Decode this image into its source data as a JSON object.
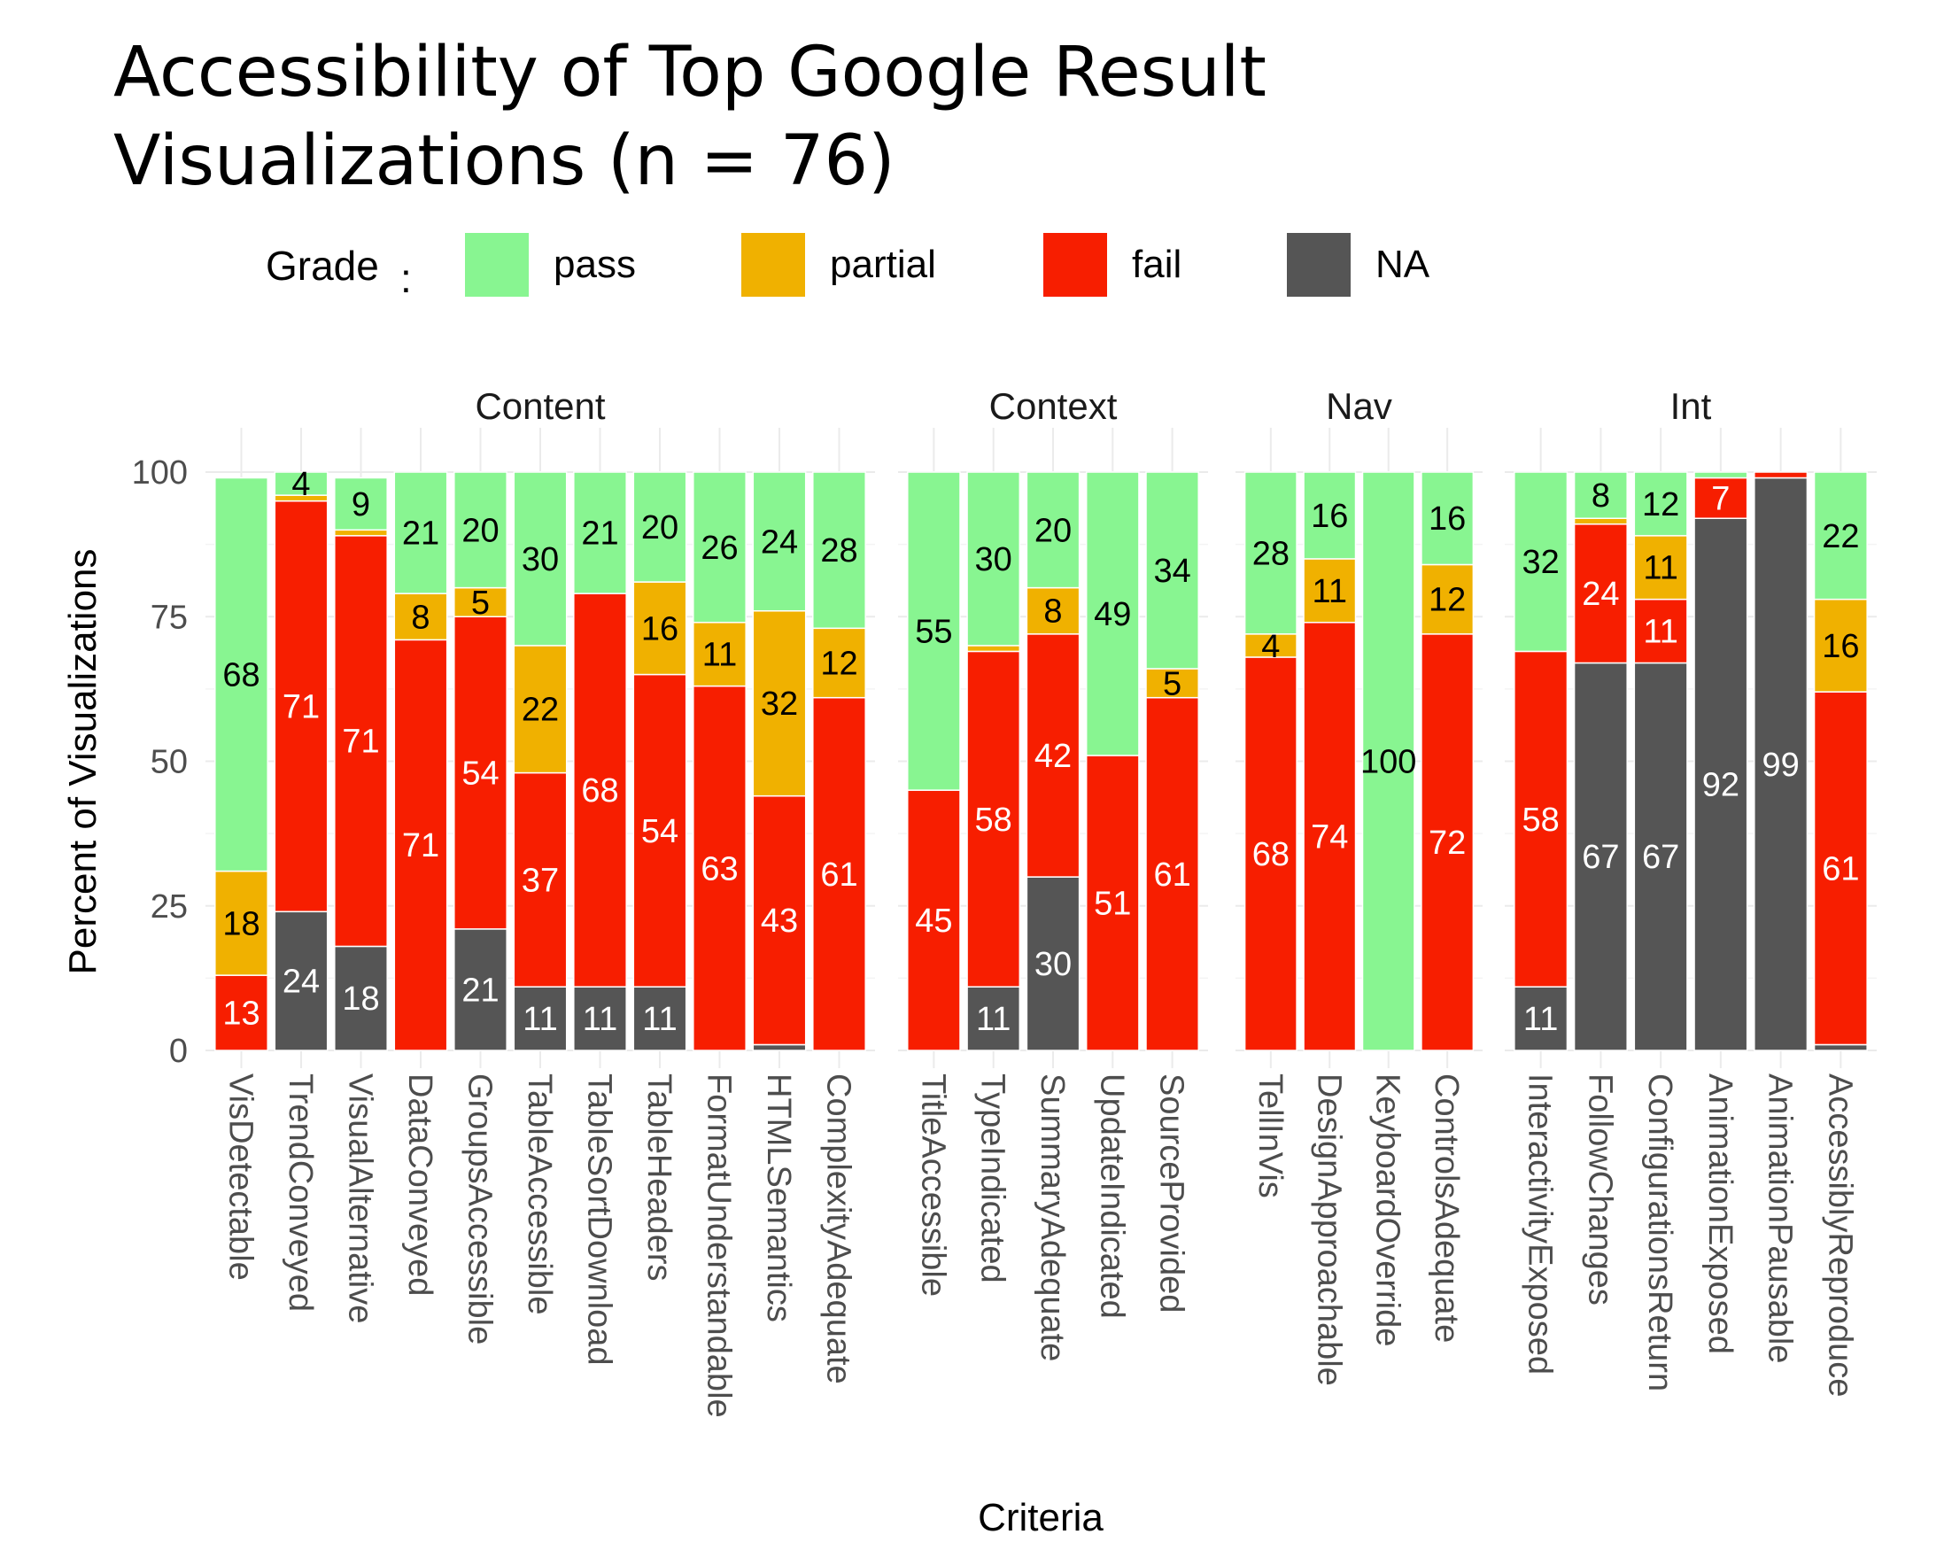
{
  "chart_data": {
    "type": "bar",
    "stacked": true,
    "title": "Accessibility of Top Google Result Visualizations (n = 76)",
    "title_lines": [
      "Accessibility of Top Google Result",
      "Visualizations (n = 76)"
    ],
    "xlabel": "Criteria",
    "ylabel": "Percent of Visualizations",
    "ylim": [
      0,
      100
    ],
    "yticks": [
      0,
      25,
      50,
      75,
      100
    ],
    "grid": true,
    "legend": {
      "title": "Grade",
      "placement": "top",
      "entries": [
        "pass",
        "partial",
        "fail",
        "NA"
      ]
    },
    "colors": {
      "pass": "#88f591",
      "partial": "#f0b100",
      "fail": "#f71e00",
      "NA": "#555555"
    },
    "stack_order_bottom_to_top": [
      "NA",
      "fail",
      "partial",
      "pass"
    ],
    "panels": [
      {
        "name": "Content",
        "categories": [
          {
            "name": "VisDetectable",
            "NA": 0,
            "fail": 13,
            "partial": 18,
            "pass": 68
          },
          {
            "name": "TrendConveyed",
            "NA": 24,
            "fail": 71,
            "partial": 1,
            "pass": 4
          },
          {
            "name": "VisualAlternative",
            "NA": 18,
            "fail": 71,
            "partial": 1,
            "pass": 9
          },
          {
            "name": "DataConveyed",
            "NA": 0,
            "fail": 71,
            "partial": 8,
            "pass": 21
          },
          {
            "name": "GroupsAccessible",
            "NA": 21,
            "fail": 54,
            "partial": 5,
            "pass": 20
          },
          {
            "name": "TableAccessible",
            "NA": 11,
            "fail": 37,
            "partial": 22,
            "pass": 30
          },
          {
            "name": "TableSortDownload",
            "NA": 11,
            "fail": 68,
            "partial": 0,
            "pass": 21
          },
          {
            "name": "TableHeaders",
            "NA": 11,
            "fail": 54,
            "partial": 16,
            "pass": 20
          },
          {
            "name": "FormatUnderstandable",
            "NA": 0,
            "fail": 63,
            "partial": 11,
            "pass": 26
          },
          {
            "name": "HTMLSemantics",
            "NA": 1,
            "fail": 43,
            "partial": 32,
            "pass": 24
          },
          {
            "name": "ComplexityAdequate",
            "NA": 0,
            "fail": 61,
            "partial": 12,
            "pass": 28
          }
        ]
      },
      {
        "name": "Context",
        "categories": [
          {
            "name": "TitleAccessible",
            "NA": 0,
            "fail": 45,
            "partial": 0,
            "pass": 55
          },
          {
            "name": "TypeIndicated",
            "NA": 11,
            "fail": 58,
            "partial": 1,
            "pass": 30
          },
          {
            "name": "SummaryAdequate",
            "NA": 30,
            "fail": 42,
            "partial": 8,
            "pass": 20
          },
          {
            "name": "UpdateIndicated",
            "NA": 0,
            "fail": 51,
            "partial": 0,
            "pass": 49
          },
          {
            "name": "SourceProvided",
            "NA": 0,
            "fail": 61,
            "partial": 5,
            "pass": 34
          }
        ]
      },
      {
        "name": "Nav",
        "categories": [
          {
            "name": "TellInVis",
            "NA": 0,
            "fail": 68,
            "partial": 4,
            "pass": 28
          },
          {
            "name": "DesignApproachable",
            "NA": 0,
            "fail": 74,
            "partial": 11,
            "pass": 16
          },
          {
            "name": "KeyboardOverride",
            "NA": 0,
            "fail": 0,
            "partial": 0,
            "pass": 100
          },
          {
            "name": "ControlsAdequate",
            "NA": 0,
            "fail": 72,
            "partial": 12,
            "pass": 16
          }
        ]
      },
      {
        "name": "Int",
        "categories": [
          {
            "name": "InteractivityExposed",
            "NA": 11,
            "fail": 58,
            "partial": 0,
            "pass": 32
          },
          {
            "name": "FollowChanges",
            "NA": 67,
            "fail": 24,
            "partial": 1,
            "pass": 8
          },
          {
            "name": "ConfigurationsReturn",
            "NA": 67,
            "fail": 11,
            "partial": 11,
            "pass": 12
          },
          {
            "name": "AnimationExposed",
            "NA": 92,
            "fail": 7,
            "partial": 0,
            "pass": 1
          },
          {
            "name": "AnimationPausable",
            "NA": 99,
            "fail": 1,
            "partial": 0,
            "pass": 0
          },
          {
            "name": "AccessiblyReproduce",
            "NA": 1,
            "fail": 61,
            "partial": 16,
            "pass": 22
          }
        ]
      }
    ]
  }
}
